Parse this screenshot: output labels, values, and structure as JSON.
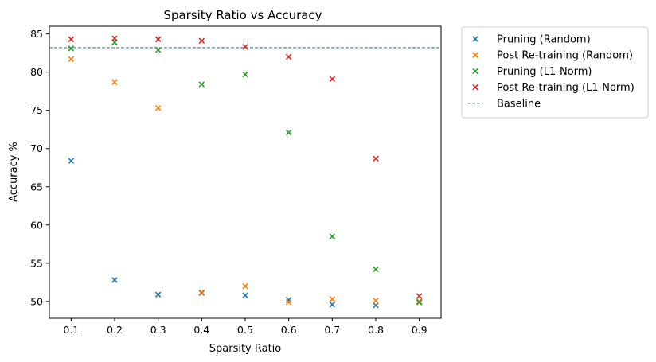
{
  "chart_data": {
    "type": "scatter",
    "title": "Sparsity Ratio vs Accuracy",
    "xlabel": "Sparsity Ratio",
    "ylabel": "Accuracy %",
    "xlim": [
      0.05,
      0.95
    ],
    "ylim": [
      47.8,
      86.0
    ],
    "xticks": [
      "0.1",
      "0.2",
      "0.3",
      "0.4",
      "0.5",
      "0.6",
      "0.7",
      "0.8",
      "0.9"
    ],
    "yticks": [
      "50",
      "55",
      "60",
      "65",
      "70",
      "75",
      "80",
      "85"
    ],
    "grid": false,
    "legend_position": "outside-top-right",
    "x": [
      0.1,
      0.2,
      0.3,
      0.4,
      0.5,
      0.6,
      0.7,
      0.8,
      0.9
    ],
    "series": [
      {
        "name": "Pruning (Random)",
        "color": "#1f77b4",
        "marker": "x",
        "values": [
          68.4,
          52.8,
          50.9,
          51.1,
          50.8,
          50.2,
          49.6,
          49.5,
          49.9
        ]
      },
      {
        "name": "Post Re-training (Random)",
        "color": "#ff7f0e",
        "marker": "x",
        "values": [
          81.7,
          78.7,
          75.3,
          51.2,
          52.0,
          49.9,
          50.3,
          50.1,
          50.0
        ]
      },
      {
        "name": "Pruning (L1-Norm)",
        "color": "#2ca02c",
        "marker": "x",
        "values": [
          83.1,
          83.9,
          82.9,
          78.4,
          79.7,
          72.1,
          58.5,
          54.2,
          49.9
        ]
      },
      {
        "name": "Post Re-training (L1-Norm)",
        "color": "#d62728",
        "marker": "x",
        "values": [
          84.3,
          84.4,
          84.3,
          84.1,
          83.3,
          82.0,
          79.1,
          68.7,
          50.7
        ]
      }
    ],
    "baseline": {
      "name": "Baseline",
      "value": 83.2,
      "color": "#1f77b4",
      "style": "dashed"
    }
  }
}
